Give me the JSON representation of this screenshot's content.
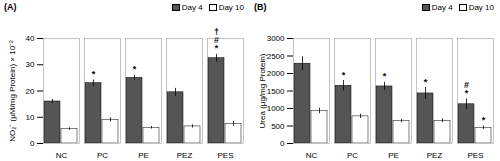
{
  "chart_data": [
    {
      "type": "bar",
      "title": "(A)",
      "ylabel": "NO₂⁻ (μM/mg Protein) × 10⁻²",
      "categories": [
        "NC",
        "PC",
        "PE",
        "PEZ",
        "PES"
      ],
      "series": [
        {
          "name": "Day 4",
          "color": "#555555",
          "values": [
            16.0,
            23.0,
            25.0,
            19.5,
            32.5
          ],
          "errors": [
            0.8,
            1.2,
            1.0,
            1.5,
            1.5
          ],
          "annotations": [
            [],
            [
              "*"
            ],
            [
              "*"
            ],
            [],
            [
              "†",
              "#",
              "*"
            ]
          ]
        },
        {
          "name": "Day 10",
          "color": "#ffffff",
          "values": [
            5.5,
            9.0,
            6.0,
            6.5,
            7.5
          ],
          "errors": [
            0.5,
            0.8,
            0.5,
            0.6,
            1.0
          ],
          "annotations": [
            [],
            [],
            [],
            [],
            []
          ]
        }
      ],
      "ylim": [
        0,
        40
      ],
      "yticks": [
        0,
        10,
        20,
        30,
        40
      ],
      "legend": "upper right",
      "grid": false
    },
    {
      "type": "bar",
      "title": "(B)",
      "ylabel": "Urea (μg/mg Protein)",
      "categories": [
        "NC",
        "PC",
        "PE",
        "PEZ",
        "PES"
      ],
      "series": [
        {
          "name": "Day 4",
          "color": "#555555",
          "values": [
            2280,
            1650,
            1630,
            1430,
            1120
          ],
          "errors": [
            200,
            150,
            120,
            170,
            150
          ],
          "annotations": [
            [],
            [
              "*"
            ],
            [
              "*"
            ],
            [
              "*"
            ],
            [
              "#",
              "*"
            ]
          ]
        },
        {
          "name": "Day 10",
          "color": "#ffffff",
          "values": [
            930,
            775,
            640,
            650,
            450
          ],
          "errors": [
            80,
            60,
            50,
            55,
            50
          ],
          "annotations": [
            [],
            [],
            [],
            [],
            [
              "*"
            ]
          ]
        }
      ],
      "ylim": [
        0,
        3000
      ],
      "yticks": [
        0,
        500,
        1000,
        1500,
        2000,
        2500,
        3000
      ],
      "legend": "upper right",
      "grid": false
    }
  ]
}
